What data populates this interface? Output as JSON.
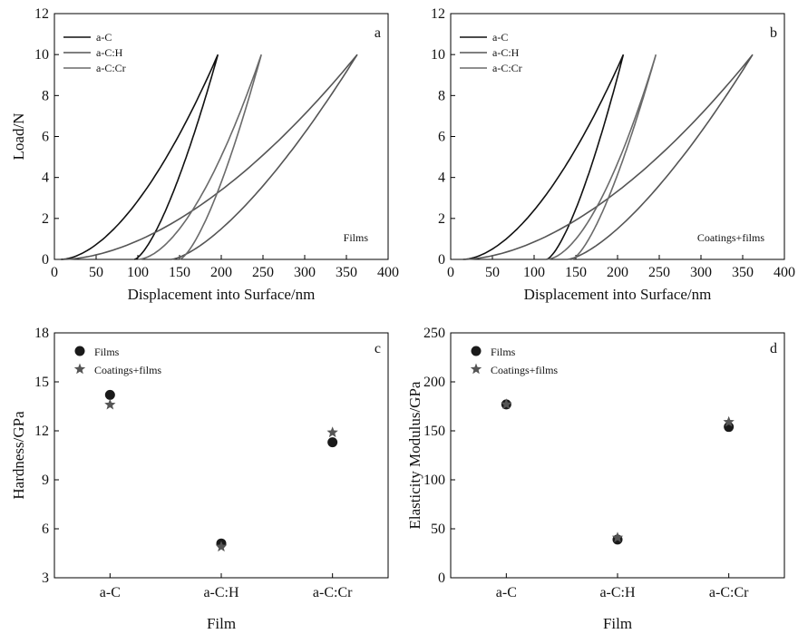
{
  "chart_data": [
    {
      "type": "line",
      "panel_label": "a",
      "annotation": "Films",
      "xlabel": "Displacement into Surface/nm",
      "ylabel": "Load/N",
      "xlim": [
        0,
        400
      ],
      "ylim": [
        0,
        12
      ],
      "xticks": [
        0,
        50,
        100,
        150,
        200,
        250,
        300,
        350,
        400
      ],
      "yticks": [
        0,
        2,
        4,
        6,
        8,
        10,
        12
      ],
      "legend_position": "top-left",
      "colors": {
        "a-C": "#111111",
        "a-C:H": "#555555",
        "a-C:Cr": "#6a6a6a"
      },
      "series": [
        {
          "name": "a-C",
          "max_load": 10,
          "loading_start": 8,
          "max_depth": 196,
          "unloading_end": 96
        },
        {
          "name": "a-C:H",
          "max_load": 10,
          "loading_start": 10,
          "max_depth": 363,
          "unloading_end": 140
        },
        {
          "name": "a-C:Cr",
          "max_load": 10,
          "loading_start": 100,
          "max_depth": 248,
          "unloading_end": 150
        }
      ]
    },
    {
      "type": "line",
      "panel_label": "b",
      "annotation": "Coatings+films",
      "xlabel": "Displacement into Surface/nm",
      "ylabel": "",
      "xlim": [
        0,
        400
      ],
      "ylim": [
        0,
        12
      ],
      "xticks": [
        0,
        50,
        100,
        150,
        200,
        250,
        300,
        350,
        400
      ],
      "yticks": [
        0,
        2,
        4,
        6,
        8,
        10,
        12
      ],
      "legend_position": "top-left",
      "colors": {
        "a-C": "#111111",
        "a-C:H": "#555555",
        "a-C:Cr": "#6a6a6a"
      },
      "series": [
        {
          "name": "a-C",
          "max_load": 10,
          "loading_start": 15,
          "max_depth": 207,
          "unloading_end": 115
        },
        {
          "name": "a-C:H",
          "max_load": 10,
          "loading_start": 15,
          "max_depth": 362,
          "unloading_end": 140
        },
        {
          "name": "a-C:Cr",
          "max_load": 10,
          "loading_start": 115,
          "max_depth": 246,
          "unloading_end": 145
        }
      ]
    },
    {
      "type": "scatter",
      "panel_label": "c",
      "xlabel": "Film",
      "ylabel": "Hardness/GPa",
      "categories": [
        "a-C",
        "a-C:H",
        "a-C:Cr"
      ],
      "ylim": [
        3,
        18
      ],
      "yticks": [
        3,
        6,
        9,
        12,
        15,
        18
      ],
      "legend_position": "top-left",
      "series": [
        {
          "name": "Films",
          "marker": "circle",
          "values": [
            14.2,
            5.1,
            11.3
          ]
        },
        {
          "name": "Coatings+films",
          "marker": "star",
          "values": [
            13.6,
            4.9,
            11.9
          ]
        }
      ]
    },
    {
      "type": "scatter",
      "panel_label": "d",
      "xlabel": "Film",
      "ylabel": "Elasticity Modulus/GPa",
      "categories": [
        "a-C",
        "a-C:H",
        "a-C:Cr"
      ],
      "ylim": [
        0,
        250
      ],
      "yticks": [
        0,
        50,
        100,
        150,
        200,
        250
      ],
      "legend_position": "top-left",
      "series": [
        {
          "name": "Films",
          "marker": "circle",
          "values": [
            177,
            39,
            154
          ]
        },
        {
          "name": "Coatings+films",
          "marker": "star",
          "values": [
            177,
            41,
            159
          ]
        }
      ]
    }
  ]
}
